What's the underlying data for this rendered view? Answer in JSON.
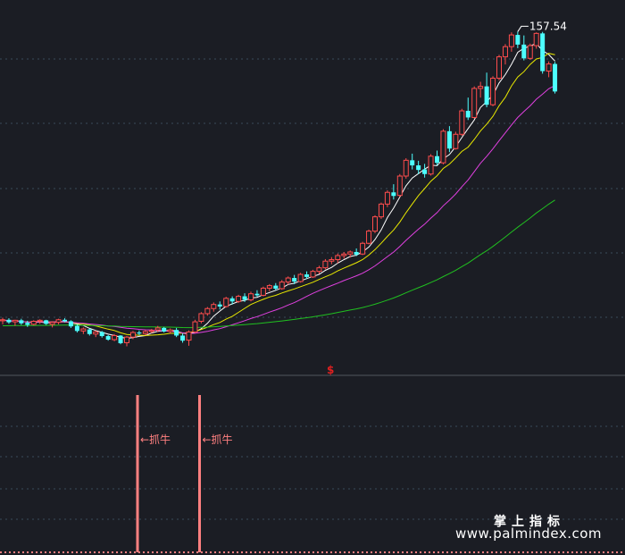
{
  "chart_data": {
    "type": "candlestick",
    "price_ylim": [
      95,
      162
    ],
    "max_price_label": "157.54",
    "ohlc": [
      [
        100.8,
        101.4,
        100.1,
        101.0
      ],
      [
        101.0,
        101.3,
        100.2,
        100.5
      ],
      [
        100.6,
        101.0,
        99.8,
        100.9
      ],
      [
        100.9,
        101.2,
        100.0,
        100.3
      ],
      [
        100.4,
        100.8,
        99.6,
        100.0
      ],
      [
        100.1,
        100.9,
        99.9,
        100.7
      ],
      [
        100.7,
        101.1,
        100.2,
        100.9
      ],
      [
        100.9,
        101.0,
        100.0,
        100.2
      ],
      [
        100.1,
        100.7,
        99.5,
        100.5
      ],
      [
        100.5,
        101.2,
        100.1,
        101.0
      ],
      [
        101.0,
        101.3,
        100.5,
        100.7
      ],
      [
        100.7,
        100.9,
        99.4,
        99.7
      ],
      [
        99.8,
        100.1,
        98.5,
        98.8
      ],
      [
        98.8,
        99.5,
        98.2,
        99.2
      ],
      [
        99.1,
        99.3,
        97.9,
        98.2
      ],
      [
        98.2,
        98.9,
        97.6,
        98.6
      ],
      [
        98.6,
        98.8,
        97.5,
        97.8
      ],
      [
        97.8,
        98.0,
        96.9,
        97.1
      ],
      [
        97.1,
        98.2,
        96.8,
        97.9
      ],
      [
        97.9,
        98.0,
        96.2,
        96.4
      ],
      [
        96.5,
        97.8,
        95.8,
        97.6
      ],
      [
        97.6,
        98.8,
        97.2,
        98.5
      ],
      [
        98.5,
        98.9,
        98.0,
        98.3
      ],
      [
        98.3,
        99.0,
        98.0,
        98.7
      ],
      [
        98.7,
        99.2,
        98.4,
        98.9
      ],
      [
        99.0,
        99.8,
        98.6,
        99.4
      ],
      [
        99.4,
        99.6,
        98.5,
        98.7
      ],
      [
        98.7,
        99.3,
        98.3,
        99.0
      ],
      [
        99.0,
        99.4,
        97.6,
        97.9
      ],
      [
        97.9,
        98.3,
        96.5,
        96.9
      ],
      [
        97.0,
        98.9,
        95.9,
        98.6
      ],
      [
        98.6,
        101.0,
        98.4,
        100.6
      ],
      [
        100.7,
        102.5,
        100.3,
        102.2
      ],
      [
        102.2,
        103.5,
        101.8,
        103.2
      ],
      [
        103.2,
        104.4,
        102.6,
        104.0
      ],
      [
        104.0,
        104.6,
        103.0,
        103.6
      ],
      [
        103.6,
        105.5,
        103.4,
        105.2
      ],
      [
        105.2,
        105.6,
        104.0,
        104.6
      ],
      [
        104.6,
        105.9,
        104.3,
        105.6
      ],
      [
        105.6,
        106.2,
        104.5,
        104.9
      ],
      [
        104.9,
        106.5,
        104.6,
        106.1
      ],
      [
        106.1,
        106.8,
        105.5,
        105.8
      ],
      [
        105.8,
        107.5,
        105.6,
        107.2
      ],
      [
        107.2,
        108.0,
        106.6,
        107.7
      ],
      [
        107.7,
        108.2,
        106.8,
        107.1
      ],
      [
        107.1,
        108.8,
        106.9,
        108.4
      ],
      [
        108.4,
        109.5,
        107.9,
        109.2
      ],
      [
        109.2,
        109.8,
        108.0,
        108.5
      ],
      [
        108.5,
        110.2,
        108.3,
        109.9
      ],
      [
        109.9,
        110.5,
        109.0,
        109.4
      ],
      [
        109.4,
        110.8,
        109.2,
        110.5
      ],
      [
        110.5,
        111.6,
        110.0,
        111.2
      ],
      [
        111.2,
        112.9,
        110.9,
        112.5
      ],
      [
        112.5,
        113.3,
        111.9,
        112.8
      ],
      [
        112.8,
        114.0,
        112.1,
        113.6
      ],
      [
        113.6,
        114.3,
        113.0,
        113.9
      ],
      [
        113.9,
        114.6,
        113.2,
        114.3
      ],
      [
        114.3,
        115.0,
        113.5,
        113.8
      ],
      [
        113.9,
        116.3,
        113.7,
        116.0
      ],
      [
        116.0,
        118.7,
        115.8,
        118.4
      ],
      [
        118.4,
        121.5,
        118.0,
        121.2
      ],
      [
        121.2,
        124.0,
        120.8,
        123.7
      ],
      [
        123.7,
        126.4,
        123.1,
        126.0
      ],
      [
        126.0,
        127.6,
        124.6,
        125.3
      ],
      [
        125.4,
        129.6,
        125.1,
        129.2
      ],
      [
        129.2,
        132.7,
        128.7,
        132.3
      ],
      [
        132.3,
        133.6,
        130.5,
        131.3
      ],
      [
        131.3,
        132.2,
        129.6,
        130.4
      ],
      [
        130.5,
        131.6,
        128.9,
        129.6
      ],
      [
        129.6,
        133.5,
        129.3,
        133.1
      ],
      [
        133.1,
        134.2,
        131.3,
        131.8
      ],
      [
        131.8,
        138.4,
        131.5,
        138.0
      ],
      [
        138.0,
        139.0,
        133.9,
        134.6
      ],
      [
        134.6,
        137.9,
        134.4,
        137.4
      ],
      [
        137.4,
        142.4,
        137.1,
        142.0
      ],
      [
        142.0,
        144.6,
        140.2,
        140.7
      ],
      [
        140.7,
        146.8,
        140.5,
        146.4
      ],
      [
        146.4,
        147.7,
        144.6,
        146.8
      ],
      [
        146.8,
        149.5,
        142.7,
        143.2
      ],
      [
        143.2,
        148.8,
        142.9,
        148.4
      ],
      [
        148.4,
        153.0,
        148.0,
        152.6
      ],
      [
        152.6,
        155.1,
        151.1,
        154.6
      ],
      [
        154.6,
        157.4,
        153.6,
        156.9
      ],
      [
        156.9,
        157.54,
        154.3,
        155.0
      ],
      [
        155.0,
        156.8,
        151.9,
        152.3
      ],
      [
        152.3,
        155.2,
        152.0,
        154.8
      ],
      [
        154.8,
        157.4,
        154.2,
        157.2
      ],
      [
        157.2,
        157.5,
        149.3,
        149.8
      ],
      [
        149.8,
        151.7,
        148.6,
        151.2
      ],
      [
        151.2,
        151.6,
        145.4,
        145.8
      ]
    ],
    "moving_averages": [
      {
        "color": "#ffffff",
        "period": 5
      },
      {
        "color": "#e8e800",
        "period": 10
      },
      {
        "color": "#e040e0",
        "period": 20
      },
      {
        "color": "#20c020",
        "period": 60
      }
    ],
    "ma60_seed": 99.8,
    "signal_marker": "$",
    "signal_label": "←抓牛",
    "signal_bars": [
      20,
      30
    ]
  },
  "colors": {
    "background": "#1b1d24",
    "up": "#ff4d4d",
    "down": "#4dffff",
    "grid": "#3a4a5a",
    "signal": "#ff8080"
  },
  "watermark": {
    "cn": "掌上指标",
    "url": "www.palmindex.com"
  }
}
